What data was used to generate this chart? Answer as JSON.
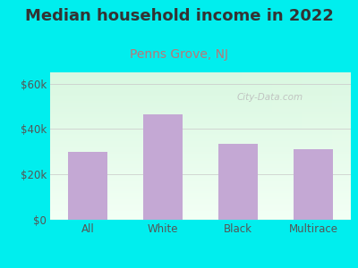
{
  "title": "Median household income in 2022",
  "subtitle": "Penns Grove, NJ",
  "categories": [
    "All",
    "White",
    "Black",
    "Multirace"
  ],
  "values": [
    30000,
    46500,
    33500,
    31000
  ],
  "bar_color": "#C4A8D4",
  "title_fontsize": 13,
  "subtitle_fontsize": 10,
  "subtitle_color": "#BB7777",
  "title_color": "#333333",
  "ylim": [
    0,
    65000
  ],
  "yticks": [
    0,
    20000,
    40000,
    60000
  ],
  "ytick_labels": [
    "$0",
    "$20k",
    "$40k",
    "$60k"
  ],
  "background_outer": "#00EEEE",
  "watermark": "City-Data.com",
  "grid_color": "#CCCCCC",
  "tick_color": "#555555",
  "tick_fontsize": 8.5
}
